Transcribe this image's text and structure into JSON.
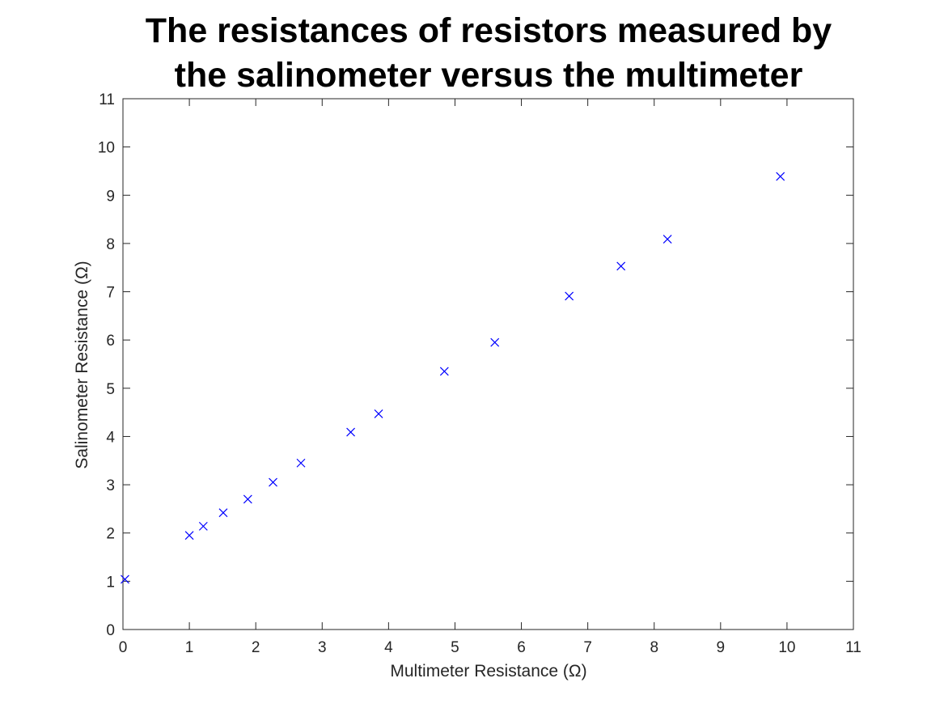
{
  "chart_data": {
    "type": "scatter",
    "title": [
      "The resistances of resistors measured by",
      "the salinometer versus the multimeter"
    ],
    "xlabel": "Multimeter Resistance (Ω)",
    "ylabel": "Salinometer Resistance (Ω)",
    "xlim": [
      0,
      11
    ],
    "ylim": [
      0,
      11
    ],
    "xticks": [
      0,
      1,
      2,
      3,
      4,
      5,
      6,
      7,
      8,
      9,
      10,
      11
    ],
    "yticks": [
      0,
      1,
      2,
      3,
      4,
      5,
      6,
      7,
      8,
      9,
      10,
      11
    ],
    "grid": false,
    "marker": "x",
    "color": "#0000ff",
    "series": [
      {
        "x": [
          0.03,
          1.0,
          1.21,
          1.51,
          1.88,
          2.26,
          2.68,
          3.43,
          3.85,
          4.84,
          5.6,
          6.72,
          7.5,
          8.2,
          9.9
        ],
        "y": [
          1.04,
          1.95,
          2.14,
          2.42,
          2.7,
          3.05,
          3.45,
          4.09,
          4.47,
          5.35,
          5.95,
          6.91,
          7.53,
          8.09,
          9.39
        ]
      }
    ]
  }
}
